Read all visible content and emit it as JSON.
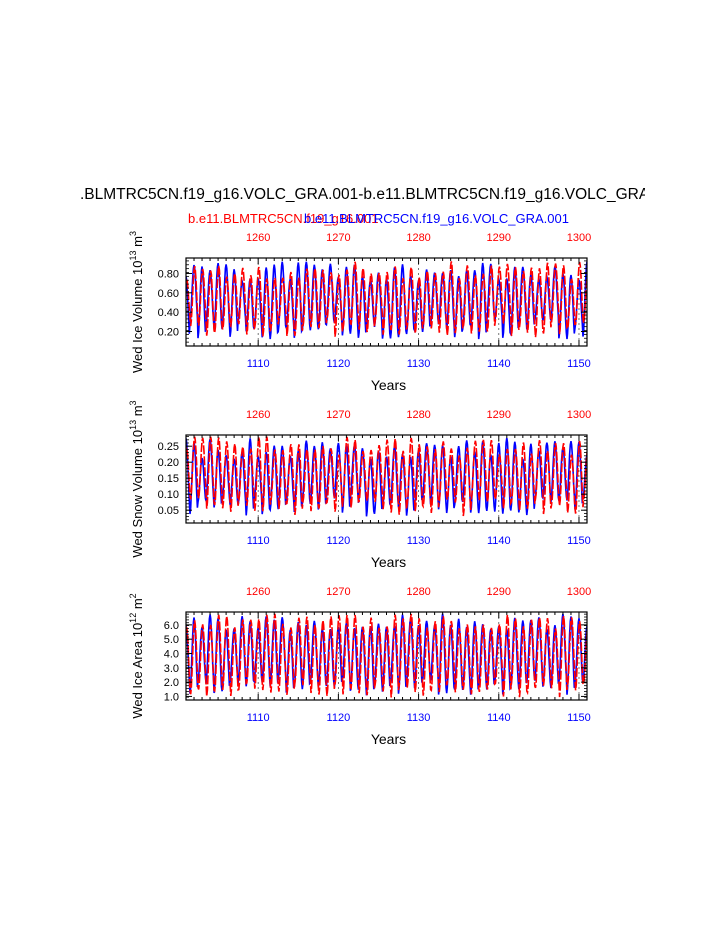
{
  "header": {
    "title": ".BLMTRC5CN.f19_g16.VOLC_GRA.001-b.e11.BLMTRC5CN.f19_g16.VOLC_GRA",
    "legend_red": "b.e11.BLMTRC5CN.f19_g16.001",
    "legend_blue": "b.e11.BLMTRC5CN.f19_g16.VOLC_GRA.001"
  },
  "colors": {
    "series_a": "#0000ff",
    "series_b": "#ff0000",
    "axis": "#000000"
  },
  "chart_data": [
    {
      "type": "line",
      "ylabel_main": "Wed Ice Volume 10",
      "ylabel_exp": "13",
      "ylabel_unit": " m",
      "ylabel_unit_exp": "3",
      "xlabel": "Years",
      "ylim": [
        0.05,
        0.96
      ],
      "yticks": [
        0.2,
        0.4,
        0.6,
        0.8
      ],
      "ytick_labels": [
        "0.20",
        "0.40",
        "0.60",
        "0.80"
      ],
      "bottom_xlim": [
        1101,
        1151
      ],
      "bottom_xticks": [
        1110,
        1120,
        1130,
        1140,
        1150
      ],
      "top_xlim": [
        1251,
        1301
      ],
      "top_xticks": [
        1260,
        1270,
        1280,
        1290,
        1300
      ],
      "series": [
        {
          "name": "b.e11.BLMTRC5CN.f19_g16.VOLC_GRA.001",
          "axis": "bottom",
          "color": "#0000ff",
          "annual_min_range": [
            0.12,
            0.32
          ],
          "annual_max_range": [
            0.72,
            0.93
          ]
        },
        {
          "name": "b.e11.BLMTRC5CN.f19_g16.001",
          "axis": "top",
          "color": "#ff0000",
          "annual_min_range": [
            0.14,
            0.33
          ],
          "annual_max_range": [
            0.74,
            0.93
          ]
        }
      ]
    },
    {
      "type": "line",
      "ylabel_main": "Wed Snow Volume 10",
      "ylabel_exp": "13",
      "ylabel_unit": " m",
      "ylabel_unit_exp": "3",
      "xlabel": "Years",
      "ylim": [
        0.01,
        0.285
      ],
      "yticks": [
        0.05,
        0.1,
        0.15,
        0.2,
        0.25
      ],
      "ytick_labels": [
        "0.05",
        "0.10",
        "0.15",
        "0.20",
        "0.25"
      ],
      "bottom_xlim": [
        1101,
        1151
      ],
      "bottom_xticks": [
        1110,
        1120,
        1130,
        1140,
        1150
      ],
      "top_xlim": [
        1251,
        1301
      ],
      "top_xticks": [
        1260,
        1270,
        1280,
        1290,
        1300
      ],
      "series": [
        {
          "name": "b.e11.BLMTRC5CN.f19_g16.VOLC_GRA.001",
          "axis": "bottom",
          "color": "#0000ff",
          "annual_min_range": [
            0.03,
            0.09
          ],
          "annual_max_range": [
            0.21,
            0.28
          ]
        },
        {
          "name": "b.e11.BLMTRC5CN.f19_g16.001",
          "axis": "top",
          "color": "#ff0000",
          "annual_min_range": [
            0.03,
            0.09
          ],
          "annual_max_range": [
            0.22,
            0.28
          ]
        }
      ]
    },
    {
      "type": "line",
      "ylabel_main": "Wed Ice Area 10",
      "ylabel_exp": "12",
      "ylabel_unit": " m",
      "ylabel_unit_exp": "2",
      "xlabel": "Years",
      "ylim": [
        0.75,
        6.9
      ],
      "yticks": [
        1.0,
        2.0,
        3.0,
        4.0,
        5.0,
        6.0
      ],
      "ytick_labels": [
        "1.0",
        "2.0",
        "3.0",
        "4.0",
        "5.0",
        "6.0"
      ],
      "bottom_xlim": [
        1101,
        1151
      ],
      "bottom_xticks": [
        1110,
        1120,
        1130,
        1140,
        1150
      ],
      "top_xlim": [
        1251,
        1301
      ],
      "top_xticks": [
        1260,
        1270,
        1280,
        1290,
        1300
      ],
      "series": [
        {
          "name": "b.e11.BLMTRC5CN.f19_g16.VOLC_GRA.001",
          "axis": "bottom",
          "color": "#0000ff",
          "annual_min_range": [
            1.0,
            2.2
          ],
          "annual_max_range": [
            5.6,
            6.8
          ]
        },
        {
          "name": "b.e11.BLMTRC5CN.f19_g16.001",
          "axis": "top",
          "color": "#ff0000",
          "annual_min_range": [
            0.9,
            2.0
          ],
          "annual_max_range": [
            5.7,
            6.8
          ]
        }
      ]
    }
  ]
}
